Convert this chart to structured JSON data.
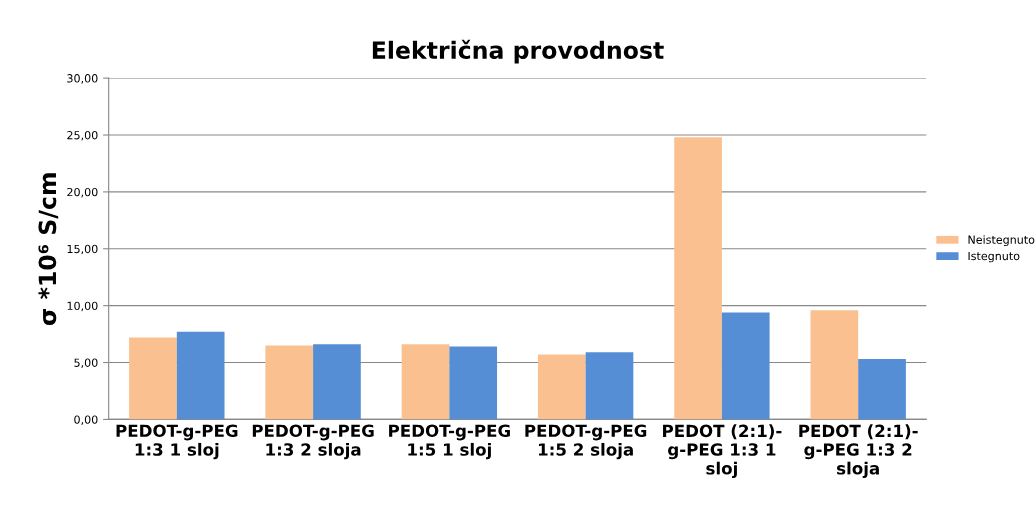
{
  "chart_data": {
    "type": "bar",
    "title": "Električna provodnost",
    "ylabel": "σ *10⁶ S/cm",
    "categories": [
      "PEDOT-g-PEG\n1:3 1 sloj",
      "PEDOT-g-PEG\n1:3 2 sloja",
      "PEDOT-g-PEG\n1:5 1 sloj",
      "PEDOT-g-PEG\n1:5 2 sloja",
      "PEDOT (2:1)-\ng-PEG 1:3 1\nsloj",
      "PEDOT (2:1)-\ng-PEG 1:3 2\nsloja"
    ],
    "series": [
      {
        "name": "Neistegnuto",
        "color": "#fac090",
        "values": [
          7.2,
          6.5,
          6.6,
          5.7,
          24.8,
          9.6
        ]
      },
      {
        "name": "Istegnuto",
        "color": "#558ed5",
        "values": [
          7.7,
          6.6,
          6.4,
          5.9,
          9.4,
          5.3
        ]
      }
    ],
    "ylim": [
      0,
      30
    ],
    "yticks": [
      {
        "value": 0,
        "label": "0,00"
      },
      {
        "value": 5,
        "label": "5,00"
      },
      {
        "value": 10,
        "label": "10,00"
      },
      {
        "value": 15,
        "label": "15,00"
      },
      {
        "value": 20,
        "label": "20,00"
      },
      {
        "value": 25,
        "label": "25,00"
      },
      {
        "value": 30,
        "label": "30,00"
      }
    ],
    "grid": "y",
    "legend": "right"
  }
}
